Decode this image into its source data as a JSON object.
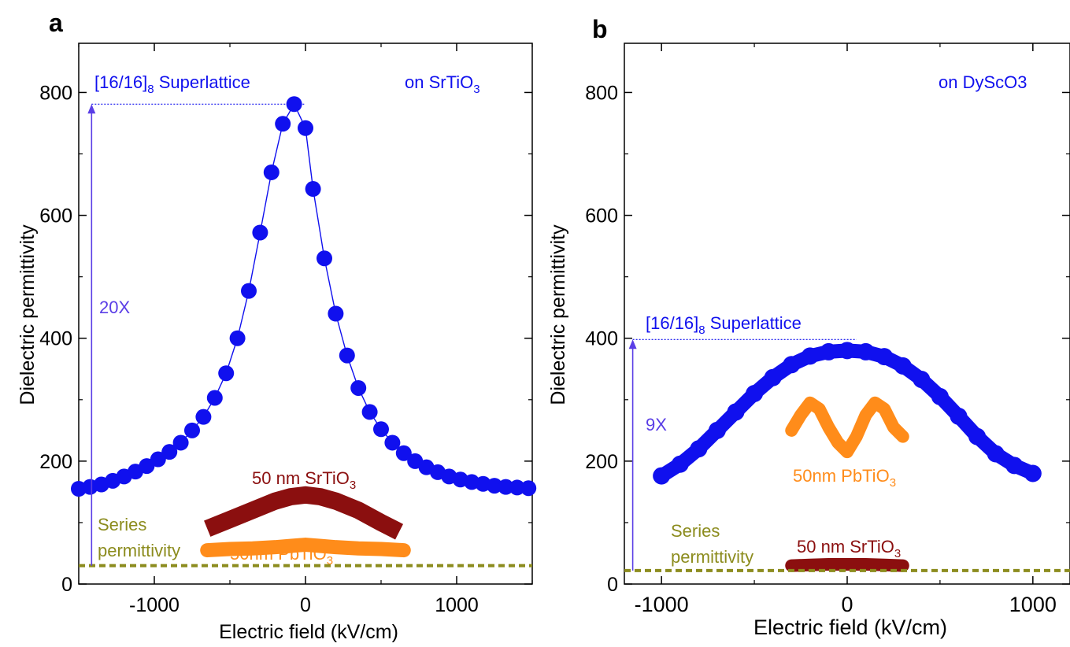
{
  "colors": {
    "superlattice": "#1010ee",
    "arrow": "#5a3ee6",
    "srtio3": "#8b0f0f",
    "pbtio3": "#ff8c1a",
    "series": "#8c8c1e",
    "axis": "#000000"
  },
  "panels": [
    {
      "letter": "a",
      "xlabel": "Electric field (kV/cm)",
      "ylabel": "Dielectric permittivity",
      "xticks": [
        "-1000",
        "0",
        "1000"
      ],
      "yticks": [
        "0",
        "200",
        "400",
        "600",
        "800"
      ],
      "substrate": "on SrTiO",
      "substrate_sub": "3",
      "sl_label": "[16/16]",
      "sl_sub": "8",
      "sl_suffix": " Superlattice",
      "factor": "20X",
      "sto_label": "50 nm SrTiO",
      "sto_sub": "3",
      "pto_label": "50nm PbTiO",
      "pto_sub": "3",
      "series_label_1": "Series",
      "series_label_2": "permittivity"
    },
    {
      "letter": "b",
      "xlabel": "Electric field (kV/cm)",
      "ylabel": "Dielectric permittivity",
      "xticks": [
        "-1000",
        "0",
        "1000"
      ],
      "yticks": [
        "0",
        "200",
        "400",
        "600",
        "800"
      ],
      "substrate": "on DyScO3",
      "sl_label": "[16/16]",
      "sl_sub": "8",
      "sl_suffix": " Superlattice",
      "factor": "9X",
      "sto_label": "50 nm SrTiO",
      "sto_sub": "3",
      "pto_label": "50nm PbTiO",
      "pto_sub": "3",
      "series_label_1": "Series",
      "series_label_2": "permittivity"
    }
  ],
  "chart_data": [
    {
      "type": "scatter",
      "panel": "a",
      "xlabel": "Electric field (kV/cm)",
      "ylabel": "Dielectric permittivity",
      "xlim": [
        -1500,
        1500
      ],
      "ylim": [
        0,
        880
      ],
      "x_ticks": [
        -1000,
        0,
        1000
      ],
      "y_ticks": [
        0,
        200,
        400,
        600,
        800
      ],
      "series": [
        {
          "name": "[16/16]8 Superlattice",
          "x": [
            -1500,
            -1425,
            -1350,
            -1275,
            -1200,
            -1125,
            -1050,
            -975,
            -900,
            -825,
            -750,
            -675,
            -600,
            -525,
            -450,
            -375,
            -300,
            -225,
            -150,
            -75,
            0,
            50,
            125,
            200,
            275,
            350,
            425,
            500,
            575,
            650,
            725,
            800,
            875,
            950,
            1025,
            1100,
            1175,
            1250,
            1325,
            1400,
            1475
          ],
          "y": [
            155,
            158,
            162,
            168,
            175,
            183,
            192,
            203,
            215,
            230,
            250,
            272,
            303,
            343,
            400,
            477,
            572,
            670,
            749,
            781,
            742,
            643,
            530,
            440,
            372,
            319,
            280,
            252,
            230,
            213,
            200,
            190,
            182,
            175,
            170,
            166,
            163,
            160,
            158,
            157,
            156
          ]
        },
        {
          "name": "50 nm SrTiO3",
          "x": [
            -650,
            -500,
            -350,
            -200,
            -100,
            0,
            100,
            200,
            350,
            500,
            620
          ],
          "y": [
            90,
            105,
            120,
            135,
            142,
            145,
            142,
            135,
            120,
            100,
            85
          ]
        },
        {
          "name": "50nm PbTiO3",
          "x": [
            -650,
            -500,
            -350,
            -200,
            -100,
            0,
            100,
            200,
            350,
            500,
            650
          ],
          "y": [
            55,
            57,
            58,
            60,
            62,
            64,
            62,
            60,
            58,
            57,
            55
          ]
        },
        {
          "name": "Series permittivity",
          "x": [
            -1500,
            1500
          ],
          "y": [
            30,
            30
          ]
        }
      ],
      "annotations": [
        "on SrTiO3",
        "[16/16]8 Superlattice",
        "20X",
        "50 nm SrTiO3",
        "50nm PbTiO3",
        "Series permittivity"
      ]
    },
    {
      "type": "scatter",
      "panel": "b",
      "xlabel": "Electric field (kV/cm)",
      "ylabel": "Dielectric permittivity",
      "xlim": [
        -1200,
        1200
      ],
      "ylim": [
        0,
        880
      ],
      "x_ticks": [
        -1000,
        0,
        1000
      ],
      "y_ticks": [
        0,
        200,
        400,
        600,
        800
      ],
      "series": [
        {
          "name": "[16/16]8 Superlattice",
          "x": [
            -1000,
            -900,
            -800,
            -700,
            -600,
            -500,
            -400,
            -300,
            -200,
            -100,
            0,
            100,
            200,
            300,
            400,
            500,
            600,
            700,
            800,
            900,
            1000
          ],
          "y": [
            176,
            195,
            220,
            250,
            280,
            310,
            336,
            357,
            371,
            378,
            380,
            378,
            370,
            355,
            333,
            305,
            273,
            240,
            212,
            193,
            180
          ]
        },
        {
          "name": "50nm PbTiO3",
          "x": [
            -300,
            -250,
            -200,
            -150,
            -100,
            -50,
            0,
            50,
            100,
            150,
            200,
            250,
            300
          ],
          "y": [
            250,
            275,
            295,
            285,
            255,
            230,
            215,
            240,
            275,
            295,
            285,
            255,
            240
          ]
        },
        {
          "name": "50 nm SrTiO3",
          "x": [
            -300,
            -200,
            -100,
            0,
            100,
            200,
            300
          ],
          "y": [
            30,
            31,
            32,
            32,
            32,
            31,
            30
          ]
        },
        {
          "name": "Series permittivity",
          "x": [
            -1200,
            1200
          ],
          "y": [
            22,
            22
          ]
        }
      ],
      "annotations": [
        "on DyScO3",
        "[16/16]8 Superlattice",
        "9X",
        "50nm PbTiO3",
        "50 nm SrTiO3",
        "Series permittivity"
      ]
    }
  ]
}
